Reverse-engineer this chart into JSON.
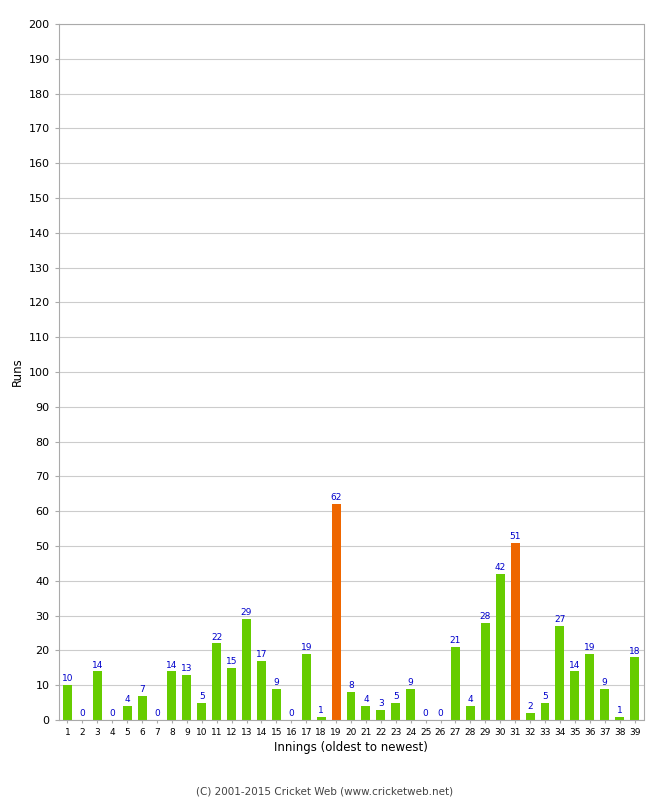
{
  "innings_labels": [
    "1",
    "2",
    "3",
    "4",
    "5",
    "6",
    "7",
    "8",
    "9",
    "10",
    "11",
    "12",
    "13",
    "14",
    "15",
    "16",
    "17",
    "18",
    "19",
    "20",
    "21",
    "22",
    "23",
    "24",
    "25",
    "26",
    "27",
    "28",
    "29",
    "30",
    "31",
    "32",
    "33",
    "34",
    "35",
    "36",
    "37",
    "38",
    "39"
  ],
  "values": [
    10,
    0,
    14,
    0,
    4,
    7,
    0,
    14,
    13,
    5,
    22,
    15,
    29,
    17,
    9,
    0,
    19,
    1,
    62,
    8,
    4,
    3,
    5,
    9,
    0,
    0,
    21,
    4,
    28,
    42,
    51,
    2,
    5,
    27,
    14,
    19,
    9,
    1,
    18
  ],
  "colors": [
    "#66cc00",
    "#66cc00",
    "#66cc00",
    "#66cc00",
    "#66cc00",
    "#66cc00",
    "#66cc00",
    "#66cc00",
    "#66cc00",
    "#66cc00",
    "#66cc00",
    "#66cc00",
    "#66cc00",
    "#66cc00",
    "#66cc00",
    "#66cc00",
    "#66cc00",
    "#66cc00",
    "#ee6600",
    "#66cc00",
    "#66cc00",
    "#66cc00",
    "#66cc00",
    "#66cc00",
    "#66cc00",
    "#66cc00",
    "#66cc00",
    "#66cc00",
    "#66cc00",
    "#66cc00",
    "#ee6600",
    "#66cc00",
    "#66cc00",
    "#66cc00",
    "#66cc00",
    "#66cc00",
    "#66cc00",
    "#66cc00",
    "#66cc00"
  ],
  "xlabel": "Innings (oldest to newest)",
  "ylabel": "Runs",
  "ylim": [
    0,
    200
  ],
  "yticks": [
    0,
    10,
    20,
    30,
    40,
    50,
    60,
    70,
    80,
    90,
    100,
    110,
    120,
    130,
    140,
    150,
    160,
    170,
    180,
    190,
    200
  ],
  "footer": "(C) 2001-2015 Cricket Web (www.cricketweb.net)",
  "bg_color": "#ffffff",
  "grid_color": "#cccccc",
  "label_color": "#0000cc",
  "label_fontsize": 6.5,
  "bar_width": 0.6
}
